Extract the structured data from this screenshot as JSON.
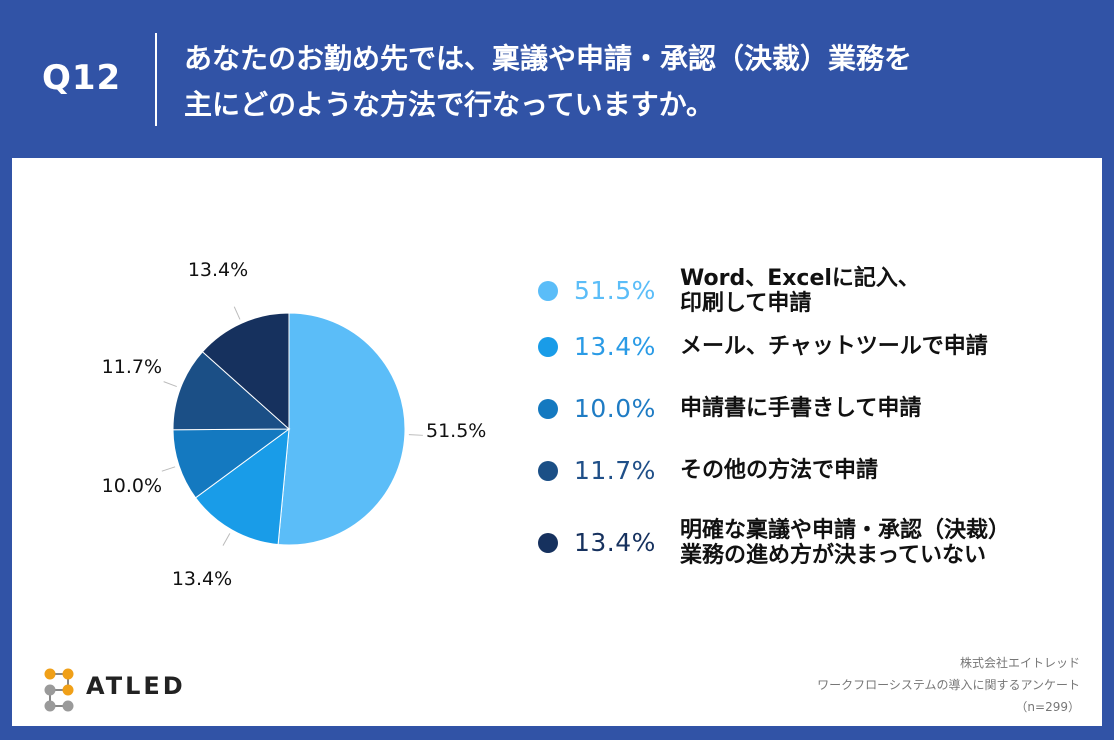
{
  "header": {
    "qnum": "Q12",
    "lines": [
      "あなたのお勤め先では、稟議や申請・承認（決裁）業務を",
      "主にどのような方法で行なっていますか。"
    ]
  },
  "chart_data": {
    "type": "pie",
    "unit": "%",
    "slices": [
      {
        "label": "Word、Excelに記入、印刷して申請",
        "value": 51.5,
        "value_label": "51.5%",
        "color": "#5bbdf8",
        "lines": [
          "Word、Excelに記入、",
          "印刷して申請"
        ]
      },
      {
        "label": "メール、チャットツールで申請",
        "value": 13.4,
        "value_label": "13.4%",
        "color": "#199ce8",
        "lines": [
          "メール、チャットツールで申請"
        ]
      },
      {
        "label": "申請書に手書きして申請",
        "value": 10.0,
        "value_label": "10.0%",
        "color": "#1479c0",
        "lines": [
          "申請書に手書きして申請"
        ]
      },
      {
        "label": "その他の方法で申請",
        "value": 11.7,
        "value_label": "11.7%",
        "color": "#1b4f86",
        "lines": [
          "その他の方法で申請"
        ]
      },
      {
        "label": "明確な稟議や申請・承認（決裁）業務の進め方が決まっていない",
        "value": 13.4,
        "value_label": "13.4%",
        "color": "#16315e",
        "lines": [
          "明確な稟議や申請・承認（決裁）",
          "業務の進め方が決まっていない"
        ]
      }
    ]
  },
  "legend_pct_colors": [
    "#5bbdf8",
    "#2a9be6",
    "#1f7cc4",
    "#1f4f88",
    "#16315e"
  ],
  "footer": {
    "lines": [
      "株式会社エイトレッド",
      "ワークフローシステムの導入に関するアンケート",
      "（n=299）"
    ]
  },
  "logo": {
    "text": "ATLED",
    "dot_colors": [
      "#f0a018",
      "#9a9a9a"
    ]
  }
}
